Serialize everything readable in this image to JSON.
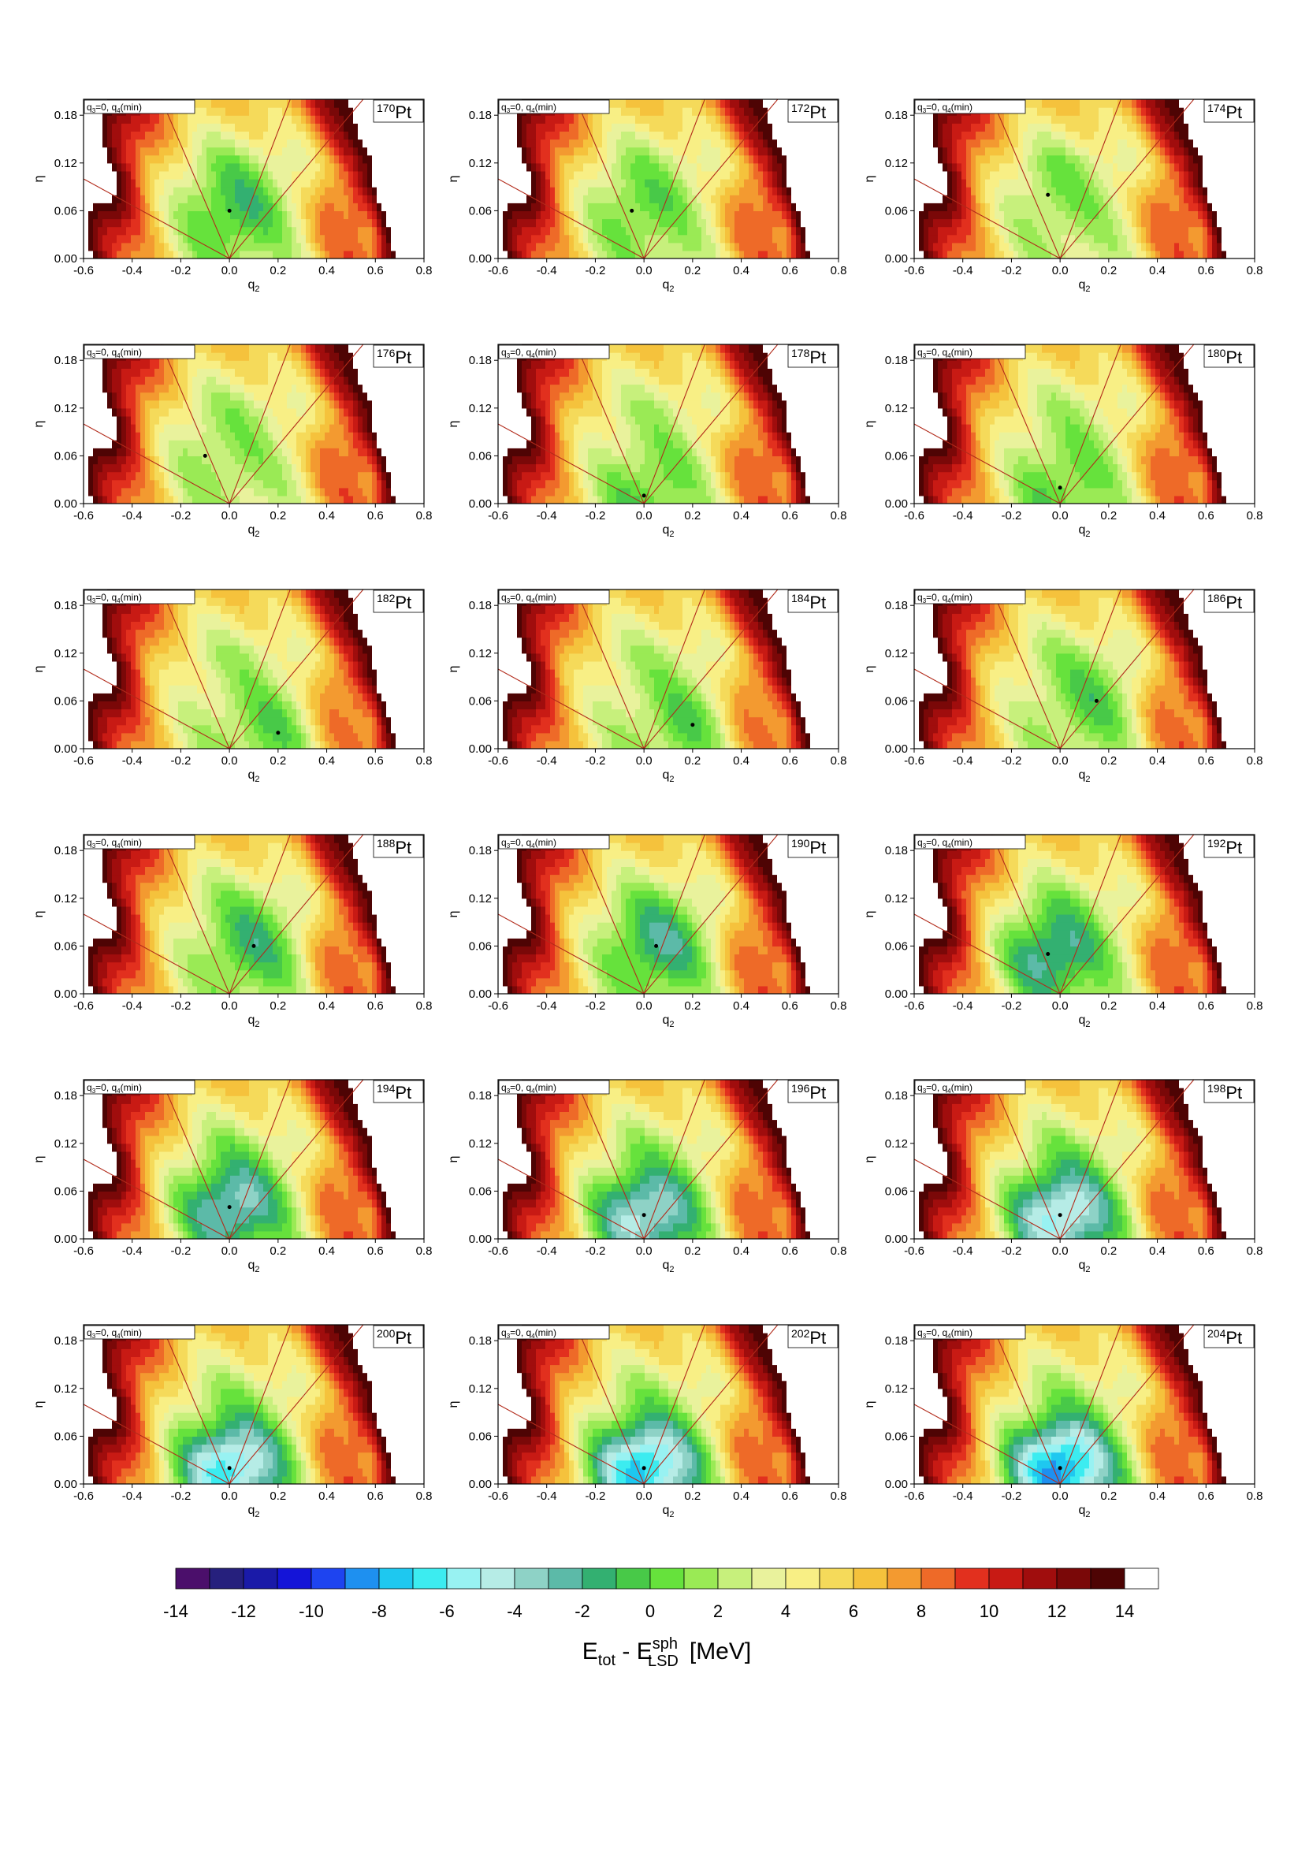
{
  "chart_data": {
    "type": "heatmap",
    "grid_layout": "6 rows x 3 columns",
    "shared": {
      "annotation": "q₃=0, q₄(min)",
      "annotation_main": "q",
      "annotation_sub1": "3",
      "annotation_mid": "=0, q",
      "annotation_sub2": "4",
      "annotation_tail": "(min)",
      "xlabel_main": "q",
      "xlabel_sub": "2",
      "ylabel": "η",
      "xlim": [
        -0.6,
        0.8
      ],
      "ylim": [
        0.0,
        0.2
      ],
      "x_ticks": [
        "-0.6",
        "-0.4",
        "-0.2",
        "0.0",
        "0.2",
        "0.4",
        "0.6",
        "0.8"
      ],
      "y_ticks": [
        "0.00",
        "0.06",
        "0.12",
        "0.18"
      ],
      "element": "Pt"
    },
    "panels": [
      {
        "mass": "170",
        "min_energy": 0,
        "min_q2": 0.0,
        "min_eta": 0.06
      },
      {
        "mass": "172",
        "min_energy": 1,
        "min_q2": -0.05,
        "min_eta": 0.06
      },
      {
        "mass": "174",
        "min_energy": 2,
        "min_q2": -0.05,
        "min_eta": 0.08
      },
      {
        "mass": "176",
        "min_energy": 2,
        "min_q2": -0.1,
        "min_eta": 0.06
      },
      {
        "mass": "178",
        "min_energy": 1,
        "min_q2": 0.0,
        "min_eta": 0.01
      },
      {
        "mass": "180",
        "min_energy": 1,
        "min_q2": 0.0,
        "min_eta": 0.02
      },
      {
        "mass": "182",
        "min_energy": 1,
        "min_q2": 0.2,
        "min_eta": 0.02
      },
      {
        "mass": "184",
        "min_energy": 1,
        "min_q2": 0.2,
        "min_eta": 0.03
      },
      {
        "mass": "186",
        "min_energy": 1,
        "min_q2": 0.15,
        "min_eta": 0.06
      },
      {
        "mass": "188",
        "min_energy": 0,
        "min_q2": 0.1,
        "min_eta": 0.06
      },
      {
        "mass": "190",
        "min_energy": -1,
        "min_q2": 0.05,
        "min_eta": 0.06
      },
      {
        "mass": "192",
        "min_energy": -2,
        "min_q2": -0.05,
        "min_eta": 0.05
      },
      {
        "mass": "194",
        "min_energy": -3,
        "min_q2": 0.0,
        "min_eta": 0.04
      },
      {
        "mass": "196",
        "min_energy": -4,
        "min_q2": 0.0,
        "min_eta": 0.03
      },
      {
        "mass": "198",
        "min_energy": -5,
        "min_q2": 0.0,
        "min_eta": 0.03
      },
      {
        "mass": "200",
        "min_energy": -6,
        "min_q2": 0.0,
        "min_eta": 0.02
      },
      {
        "mass": "202",
        "min_energy": -7,
        "min_q2": 0.0,
        "min_eta": 0.02
      },
      {
        "mass": "204",
        "min_energy": -8,
        "min_q2": 0.0,
        "min_eta": 0.02
      }
    ],
    "colorbar": {
      "range": [
        -14,
        14
      ],
      "step": 1,
      "tick_labels": [
        "-14",
        "-12",
        "-10",
        "-8",
        "-6",
        "-4",
        "-2",
        "0",
        "2",
        "4",
        "6",
        "8",
        "10",
        "12",
        "14"
      ],
      "colors": [
        "#4b0f6b",
        "#26207d",
        "#1a1aa8",
        "#1414d8",
        "#1e44f0",
        "#1e90f0",
        "#1ec8f0",
        "#3cecf0",
        "#98f2f2",
        "#b6ece6",
        "#8ed2c6",
        "#5cbaa8",
        "#33b071",
        "#48c948",
        "#66e23c",
        "#9aea55",
        "#c7f07c",
        "#e9f29c",
        "#f8ef85",
        "#f5da5a",
        "#f5c23c",
        "#f39a30",
        "#ee6a28",
        "#e2301e",
        "#c81a14",
        "#a00d0d",
        "#7a0808",
        "#4e0404",
        "#ffffff"
      ]
    },
    "colorbar_label": {
      "main": "E",
      "sub1": "tot",
      "mid": " - E",
      "sup": "sph",
      "sub2": "LSD",
      "unit": "[MeV]"
    }
  }
}
